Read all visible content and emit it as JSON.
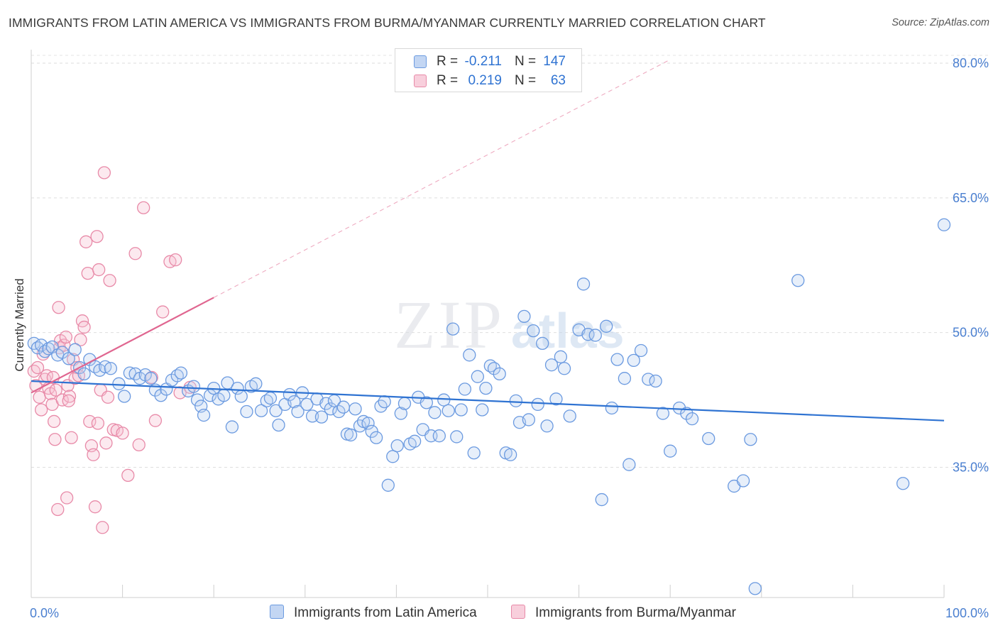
{
  "header": {
    "title": "IMMIGRANTS FROM LATIN AMERICA VS IMMIGRANTS FROM BURMA/MYANMAR CURRENTLY MARRIED CORRELATION CHART",
    "source": "Source: ZipAtlas.com"
  },
  "watermark": {
    "zip": "ZIP",
    "atlas": "atlas"
  },
  "legend_top": {
    "rows": [
      {
        "r_label": "R = ",
        "r_value": "-0.211",
        "n_label": "N = ",
        "n_value": "147",
        "color": "#6b9ae0"
      },
      {
        "r_label": "R = ",
        "r_value": "0.219",
        "n_label": "N = ",
        "n_value": "63",
        "color": "#e88aa8"
      }
    ]
  },
  "legend_bottom": {
    "items": [
      {
        "label": "Immigrants from Latin America",
        "color": "#6b9ae0"
      },
      {
        "label": "Immigrants from Burma/Myanmar",
        "color": "#e88aa8"
      }
    ]
  },
  "chart_data": {
    "type": "scatter",
    "title": "IMMIGRANTS FROM LATIN AMERICA VS IMMIGRANTS FROM BURMA/MYANMAR CURRENTLY MARRIED CORRELATION CHART",
    "xlabel": "",
    "ylabel": "Currently Married",
    "xlim": [
      0,
      100
    ],
    "ylim": [
      20.5,
      81.5
    ],
    "x_tick_labels": [
      "0.0%",
      "100.0%"
    ],
    "y_ticks": [
      35,
      50,
      65,
      80
    ],
    "y_tick_labels": [
      "35.0%",
      "50.0%",
      "65.0%",
      "80.0%"
    ],
    "grid": "horizontal dashed",
    "legend_position": "top-center",
    "colors": {
      "blue": "#6b9ae0",
      "blue_line": "#2f73d2",
      "pink": "#e88aa8",
      "pink_line": "#e06690",
      "tick_text": "#4a7fd0"
    },
    "series": [
      {
        "name": "Immigrants from Latin America",
        "r": -0.211,
        "n": 147,
        "trend": {
          "x": [
            0,
            100
          ],
          "y": [
            44.6,
            40.2
          ]
        },
        "points": [
          [
            0.3,
            48.8
          ],
          [
            0.7,
            48.3
          ],
          [
            1.1,
            48.6
          ],
          [
            1.5,
            47.9
          ],
          [
            1.9,
            48.2
          ],
          [
            2.3,
            48.4
          ],
          [
            2.9,
            47.5
          ],
          [
            3.4,
            47.8
          ],
          [
            4.1,
            47.1
          ],
          [
            4.8,
            48.1
          ],
          [
            5.3,
            46.1
          ],
          [
            5.8,
            45.4
          ],
          [
            6.4,
            47.0
          ],
          [
            7.0,
            46.2
          ],
          [
            7.5,
            45.8
          ],
          [
            8.1,
            46.2
          ],
          [
            8.7,
            46.0
          ],
          [
            9.6,
            44.3
          ],
          [
            10.2,
            42.9
          ],
          [
            10.8,
            45.5
          ],
          [
            11.4,
            45.4
          ],
          [
            11.9,
            44.9
          ],
          [
            12.5,
            45.3
          ],
          [
            13.1,
            44.9
          ],
          [
            13.6,
            43.6
          ],
          [
            14.2,
            43.0
          ],
          [
            14.8,
            43.7
          ],
          [
            15.4,
            44.7
          ],
          [
            16.0,
            45.2
          ],
          [
            16.4,
            45.5
          ],
          [
            17.2,
            43.5
          ],
          [
            17.8,
            44.0
          ],
          [
            18.2,
            42.5
          ],
          [
            18.6,
            41.8
          ],
          [
            18.9,
            40.8
          ],
          [
            19.6,
            43.0
          ],
          [
            20.0,
            43.8
          ],
          [
            20.5,
            42.6
          ],
          [
            21.1,
            43.0
          ],
          [
            21.5,
            44.4
          ],
          [
            22.0,
            39.5
          ],
          [
            22.6,
            43.8
          ],
          [
            23.0,
            42.9
          ],
          [
            23.6,
            41.2
          ],
          [
            24.1,
            44.0
          ],
          [
            24.6,
            44.3
          ],
          [
            25.2,
            41.3
          ],
          [
            25.8,
            42.4
          ],
          [
            26.2,
            42.7
          ],
          [
            26.8,
            41.3
          ],
          [
            27.1,
            39.7
          ],
          [
            27.8,
            42.0
          ],
          [
            28.3,
            43.1
          ],
          [
            28.8,
            42.3
          ],
          [
            29.2,
            41.2
          ],
          [
            29.7,
            43.3
          ],
          [
            30.2,
            42.0
          ],
          [
            30.8,
            40.7
          ],
          [
            31.3,
            42.6
          ],
          [
            31.8,
            40.6
          ],
          [
            32.3,
            42.1
          ],
          [
            32.8,
            41.5
          ],
          [
            33.2,
            42.4
          ],
          [
            33.7,
            41.2
          ],
          [
            34.2,
            41.7
          ],
          [
            34.6,
            38.7
          ],
          [
            35.0,
            38.6
          ],
          [
            35.5,
            41.5
          ],
          [
            36.0,
            39.6
          ],
          [
            36.4,
            40.1
          ],
          [
            36.9,
            39.9
          ],
          [
            37.3,
            39.0
          ],
          [
            37.8,
            38.3
          ],
          [
            38.3,
            41.8
          ],
          [
            38.7,
            42.3
          ],
          [
            39.1,
            33.0
          ],
          [
            39.6,
            36.2
          ],
          [
            40.1,
            37.4
          ],
          [
            40.5,
            41.0
          ],
          [
            40.9,
            42.1
          ],
          [
            41.5,
            37.6
          ],
          [
            42.0,
            37.9
          ],
          [
            42.4,
            42.8
          ],
          [
            42.9,
            39.2
          ],
          [
            43.3,
            42.2
          ],
          [
            43.8,
            38.5
          ],
          [
            44.2,
            41.1
          ],
          [
            44.7,
            38.5
          ],
          [
            45.2,
            42.5
          ],
          [
            45.7,
            41.3
          ],
          [
            46.2,
            50.4
          ],
          [
            46.6,
            38.4
          ],
          [
            47.1,
            41.4
          ],
          [
            47.5,
            43.7
          ],
          [
            48.0,
            47.5
          ],
          [
            48.5,
            36.6
          ],
          [
            48.9,
            45.1
          ],
          [
            49.4,
            41.4
          ],
          [
            49.8,
            43.8
          ],
          [
            50.3,
            46.3
          ],
          [
            50.7,
            46.0
          ],
          [
            51.3,
            45.4
          ],
          [
            52.0,
            36.6
          ],
          [
            52.5,
            36.4
          ],
          [
            53.1,
            42.4
          ],
          [
            53.5,
            40.0
          ],
          [
            54.0,
            51.8
          ],
          [
            54.5,
            40.3
          ],
          [
            55.0,
            50.2
          ],
          [
            55.5,
            42.0
          ],
          [
            56.0,
            48.8
          ],
          [
            56.5,
            39.6
          ],
          [
            57.0,
            46.4
          ],
          [
            57.5,
            42.6
          ],
          [
            58.0,
            47.3
          ],
          [
            58.4,
            46.0
          ],
          [
            59.0,
            40.7
          ],
          [
            60.0,
            50.3
          ],
          [
            60.5,
            55.4
          ],
          [
            61.0,
            49.8
          ],
          [
            61.8,
            49.7
          ],
          [
            62.5,
            31.4
          ],
          [
            63.0,
            50.7
          ],
          [
            63.6,
            41.6
          ],
          [
            64.2,
            47.0
          ],
          [
            65.0,
            44.9
          ],
          [
            65.5,
            35.3
          ],
          [
            66.0,
            46.9
          ],
          [
            66.8,
            48.0
          ],
          [
            67.6,
            44.8
          ],
          [
            68.4,
            44.6
          ],
          [
            69.2,
            41.0
          ],
          [
            70.0,
            36.8
          ],
          [
            71.0,
            41.6
          ],
          [
            71.8,
            41.0
          ],
          [
            72.4,
            40.4
          ],
          [
            74.2,
            38.2
          ],
          [
            77.0,
            32.9
          ],
          [
            78.0,
            33.5
          ],
          [
            78.8,
            38.1
          ],
          [
            79.3,
            21.5
          ],
          [
            84.0,
            55.8
          ],
          [
            95.5,
            33.2
          ],
          [
            100.0,
            62.0
          ]
        ]
      },
      {
        "name": "Immigrants from Burma/Myanmar",
        "r": 0.219,
        "n": 63,
        "trend": {
          "x": [
            0,
            20
          ],
          "y": [
            43.3,
            53.9
          ]
        },
        "points": [
          [
            0.3,
            45.7
          ],
          [
            0.5,
            44.1
          ],
          [
            0.7,
            46.1
          ],
          [
            0.9,
            42.8
          ],
          [
            1.1,
            41.4
          ],
          [
            1.3,
            47.6
          ],
          [
            1.5,
            44.8
          ],
          [
            1.7,
            45.2
          ],
          [
            1.9,
            43.8
          ],
          [
            2.1,
            43.2
          ],
          [
            2.3,
            42.0
          ],
          [
            2.4,
            45.0
          ],
          [
            2.5,
            40.1
          ],
          [
            2.6,
            38.1
          ],
          [
            2.7,
            43.6
          ],
          [
            2.9,
            30.3
          ],
          [
            3.0,
            52.8
          ],
          [
            3.1,
            48.3
          ],
          [
            3.2,
            49.1
          ],
          [
            3.4,
            42.5
          ],
          [
            3.6,
            48.6
          ],
          [
            3.8,
            49.5
          ],
          [
            4.0,
            44.1
          ],
          [
            4.2,
            42.9
          ],
          [
            4.4,
            38.3
          ],
          [
            4.6,
            47.0
          ],
          [
            4.8,
            44.9
          ],
          [
            5.0,
            46.1
          ],
          [
            3.9,
            31.6
          ],
          [
            5.2,
            45.2
          ],
          [
            5.4,
            49.2
          ],
          [
            5.6,
            51.3
          ],
          [
            5.8,
            50.6
          ],
          [
            6.0,
            60.1
          ],
          [
            6.2,
            56.6
          ],
          [
            6.4,
            40.1
          ],
          [
            4.1,
            42.4
          ],
          [
            6.6,
            37.4
          ],
          [
            6.8,
            36.4
          ],
          [
            7.0,
            30.6
          ],
          [
            7.2,
            60.7
          ],
          [
            7.3,
            39.9
          ],
          [
            7.4,
            57.0
          ],
          [
            7.6,
            43.6
          ],
          [
            7.8,
            28.3
          ],
          [
            8.0,
            67.8
          ],
          [
            8.2,
            37.7
          ],
          [
            8.4,
            42.8
          ],
          [
            8.6,
            55.8
          ],
          [
            9.0,
            39.2
          ],
          [
            9.4,
            39.1
          ],
          [
            10.0,
            38.8
          ],
          [
            10.6,
            34.1
          ],
          [
            11.4,
            58.8
          ],
          [
            11.8,
            37.5
          ],
          [
            12.3,
            63.9
          ],
          [
            13.2,
            45.0
          ],
          [
            13.6,
            40.2
          ],
          [
            14.4,
            52.3
          ],
          [
            15.2,
            57.9
          ],
          [
            15.8,
            58.1
          ],
          [
            16.3,
            43.3
          ],
          [
            17.4,
            43.9
          ]
        ]
      }
    ]
  }
}
